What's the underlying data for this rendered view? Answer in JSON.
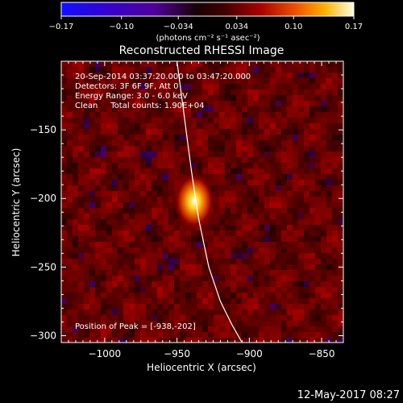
{
  "colorbar": {
    "ticks": [
      "-0.17",
      "-0.10",
      "-0.034",
      "0.034",
      "0.10",
      "0.17"
    ],
    "tick_values": [
      -0.17,
      -0.1,
      -0.034,
      0.034,
      0.1,
      0.17
    ],
    "range": [
      -0.17,
      0.17
    ],
    "units": "(photons cm⁻² s⁻¹ asec⁻²)"
  },
  "chart_data": {
    "type": "heatmap",
    "title": "Reconstructed RHESSI Image",
    "xlabel": "Heliocentric X (arcsec)",
    "ylabel": "Heliocentric Y (arcsec)",
    "xlim": [
      -1030,
      -835
    ],
    "ylim": [
      -305,
      -100
    ],
    "x_ticks": [
      -1000,
      -950,
      -900,
      -850
    ],
    "y_ticks": [
      -300,
      -250,
      -200,
      -150
    ],
    "x_tick_labels": [
      "−1000",
      "−950",
      "−900",
      "−850"
    ],
    "y_tick_labels": [
      "−300",
      "−250",
      "−200",
      "−150"
    ],
    "peak": {
      "x": -938,
      "y": -202,
      "value": 0.17
    },
    "limb_curve": [
      [
        -950,
        -100
      ],
      [
        -945,
        -140
      ],
      [
        -940,
        -180
      ],
      [
        -935,
        -215
      ],
      [
        -928,
        -250
      ],
      [
        -920,
        -275
      ],
      [
        -912,
        -292
      ],
      [
        -905,
        -305
      ]
    ],
    "annotations": [
      "20-Sep-2014 03:37:20.000 to 03:47:20.000",
      "Detectors: 3F 6F 9F, Att 0",
      "Energy Range: 3.0 - 6.0 keV",
      "Clean     Total counts: 1.90E+04"
    ],
    "peak_label": "Position of Peak = [-938,-202]"
  },
  "footer": {
    "timestamp": "12-May-2017 08:27"
  }
}
